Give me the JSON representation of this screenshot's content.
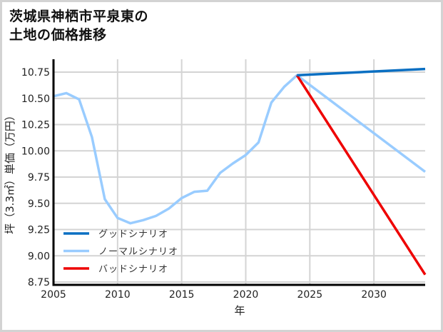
{
  "title": "茨城県神栖市平泉東の\n土地の価格推移",
  "chart_data": {
    "type": "line",
    "title": "茨城県神栖市平泉東の土地の価格推移",
    "xlabel": "年",
    "ylabel": "坪（3.3㎡）単価（万円）",
    "xlim": [
      2005,
      2034
    ],
    "ylim": [
      8.75,
      10.85
    ],
    "xticks": [
      2005,
      2010,
      2015,
      2020,
      2025,
      2030
    ],
    "yticks": [
      8.75,
      9.0,
      9.25,
      9.5,
      9.75,
      10.0,
      10.25,
      10.5,
      10.75
    ],
    "ytick_labels": [
      "8.75",
      "9.00",
      "9.25",
      "9.50",
      "9.75",
      "10.00",
      "10.25",
      "10.50",
      "10.75"
    ],
    "grid": true,
    "legend_position": "lower left",
    "series": [
      {
        "name": "グッドシナリオ",
        "color": "#0a6fc2",
        "x": [
          2024,
          2034
        ],
        "values": [
          10.72,
          10.78
        ]
      },
      {
        "name": "ノーマルシナリオ",
        "color": "#99ccff",
        "x": [
          2005,
          2006,
          2007,
          2008,
          2009,
          2010,
          2011,
          2012,
          2013,
          2014,
          2015,
          2016,
          2017,
          2018,
          2019,
          2020,
          2021,
          2022,
          2023,
          2024,
          2034
        ],
        "values": [
          10.52,
          10.55,
          10.49,
          10.13,
          9.54,
          9.36,
          9.31,
          9.34,
          9.38,
          9.45,
          9.55,
          9.61,
          9.62,
          9.79,
          9.88,
          9.96,
          10.08,
          10.46,
          10.61,
          10.72,
          9.8
        ]
      },
      {
        "name": "バッドシナリオ",
        "color": "#ee0000",
        "x": [
          2024,
          2034
        ],
        "values": [
          10.72,
          8.82
        ]
      }
    ]
  }
}
